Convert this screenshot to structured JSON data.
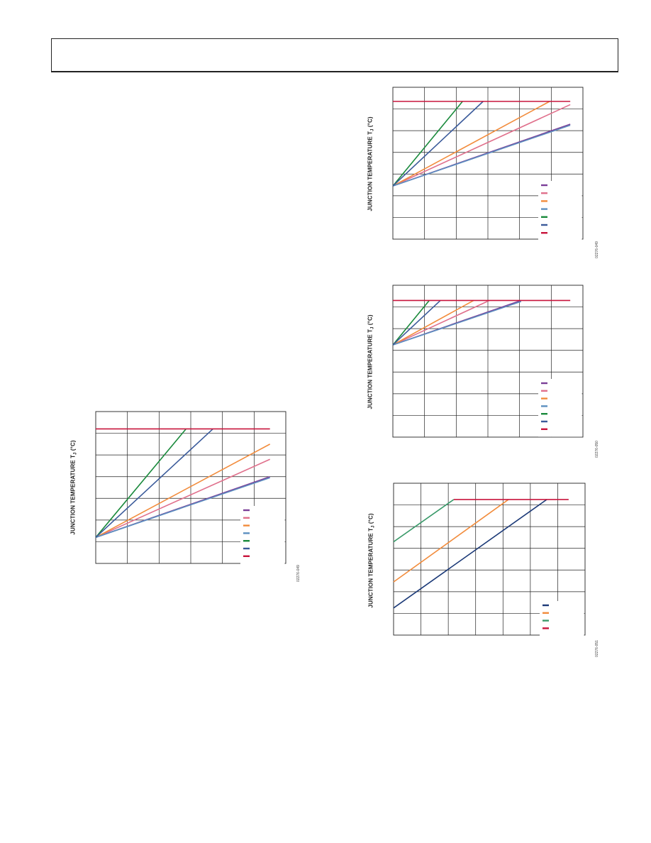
{
  "page": {
    "header_title": ""
  },
  "chart_data": [
    {
      "type": "line",
      "ylabel": "JUNCTION TEMPERATURE T",
      "ylabel_sub": "J",
      "ylabel_unit": " (°C)",
      "figure_code": "02276-049",
      "grid": true,
      "xlim": [
        0,
        6
      ],
      "ylim": [
        0,
        7
      ],
      "series": [
        {
          "color": "#7b3f98",
          "points": [
            [
              0,
              1.2
            ],
            [
              5.5,
              4.0
            ]
          ]
        },
        {
          "color": "#e0708c",
          "points": [
            [
              0,
              1.2
            ],
            [
              5.5,
              4.8
            ]
          ]
        },
        {
          "color": "#f28c3c",
          "points": [
            [
              0,
              1.2
            ],
            [
              5.5,
              5.5
            ]
          ]
        },
        {
          "color": "#5c8fc0",
          "points": [
            [
              0,
              1.2
            ],
            [
              5.5,
              3.95
            ]
          ]
        },
        {
          "color": "#1a8a3c",
          "points": [
            [
              0,
              1.2
            ],
            [
              2.85,
              6.2
            ]
          ]
        },
        {
          "color": "#3a5a9a",
          "points": [
            [
              0,
              1.2
            ],
            [
              3.7,
              6.2
            ]
          ]
        },
        {
          "color": "#c8143c",
          "points": [
            [
              0,
              6.2
            ],
            [
              5.5,
              6.2
            ]
          ]
        }
      ],
      "legend_position": "lower-right"
    },
    {
      "type": "line",
      "ylabel": "JUNCTION TEMPERATURE T",
      "ylabel_sub": "J",
      "ylabel_unit": " (°C)",
      "figure_code": "02276-049",
      "grid": true,
      "xlim": [
        0,
        6
      ],
      "ylim": [
        0,
        7
      ],
      "series": [
        {
          "color": "#7b3f98",
          "points": [
            [
              0,
              2.45
            ],
            [
              5.6,
              5.3
            ]
          ]
        },
        {
          "color": "#e0708c",
          "points": [
            [
              0,
              2.45
            ],
            [
              5.6,
              6.2
            ]
          ]
        },
        {
          "color": "#f28c3c",
          "points": [
            [
              0,
              2.45
            ],
            [
              4.95,
              6.35
            ]
          ]
        },
        {
          "color": "#5c8fc0",
          "points": [
            [
              0,
              2.45
            ],
            [
              5.6,
              5.25
            ]
          ]
        },
        {
          "color": "#1a8a3c",
          "points": [
            [
              0,
              2.45
            ],
            [
              2.2,
              6.35
            ]
          ]
        },
        {
          "color": "#3a5a9a",
          "points": [
            [
              0,
              2.45
            ],
            [
              2.85,
              6.35
            ]
          ]
        },
        {
          "color": "#c8143c",
          "points": [
            [
              0,
              6.35
            ],
            [
              5.6,
              6.35
            ]
          ]
        }
      ],
      "legend_position": "lower-right"
    },
    {
      "type": "line",
      "ylabel": "JUNCTION TEMPERATURE T",
      "ylabel_sub": "J",
      "ylabel_unit": " (°C)",
      "figure_code": "02276-050",
      "grid": true,
      "xlim": [
        0,
        6
      ],
      "ylim": [
        0,
        7
      ],
      "series": [
        {
          "color": "#7b3f98",
          "points": [
            [
              0,
              4.25
            ],
            [
              4.05,
              6.3
            ]
          ]
        },
        {
          "color": "#e0708c",
          "points": [
            [
              0,
              4.25
            ],
            [
              3.05,
              6.3
            ]
          ]
        },
        {
          "color": "#f28c3c",
          "points": [
            [
              0,
              4.25
            ],
            [
              2.55,
              6.3
            ]
          ]
        },
        {
          "color": "#5c8fc0",
          "points": [
            [
              0,
              4.25
            ],
            [
              4.05,
              6.25
            ]
          ]
        },
        {
          "color": "#1a8a3c",
          "points": [
            [
              0,
              4.25
            ],
            [
              1.15,
              6.3
            ]
          ]
        },
        {
          "color": "#3a5a9a",
          "points": [
            [
              0,
              4.25
            ],
            [
              1.5,
              6.3
            ]
          ]
        },
        {
          "color": "#c8143c",
          "points": [
            [
              0,
              6.3
            ],
            [
              5.6,
              6.3
            ]
          ]
        }
      ],
      "legend_position": "lower-right"
    },
    {
      "type": "line",
      "ylabel": "JUNCTION TEMPERATURE T",
      "ylabel_sub": "J",
      "ylabel_unit": " (°C)",
      "figure_code": "02276-051",
      "grid": true,
      "xlim": [
        0,
        7
      ],
      "ylim": [
        0,
        7
      ],
      "series": [
        {
          "color": "#1c3a78",
          "points": [
            [
              0,
              1.25
            ],
            [
              5.6,
              6.25
            ]
          ]
        },
        {
          "color": "#f28c3c",
          "points": [
            [
              0,
              2.45
            ],
            [
              4.2,
              6.25
            ]
          ]
        },
        {
          "color": "#3a9a6a",
          "points": [
            [
              0,
              4.3
            ],
            [
              2.2,
              6.25
            ]
          ]
        },
        {
          "color": "#c8143c",
          "points": [
            [
              2.2,
              6.25
            ],
            [
              6.4,
              6.25
            ]
          ]
        }
      ],
      "legend_position": "lower-right"
    }
  ]
}
